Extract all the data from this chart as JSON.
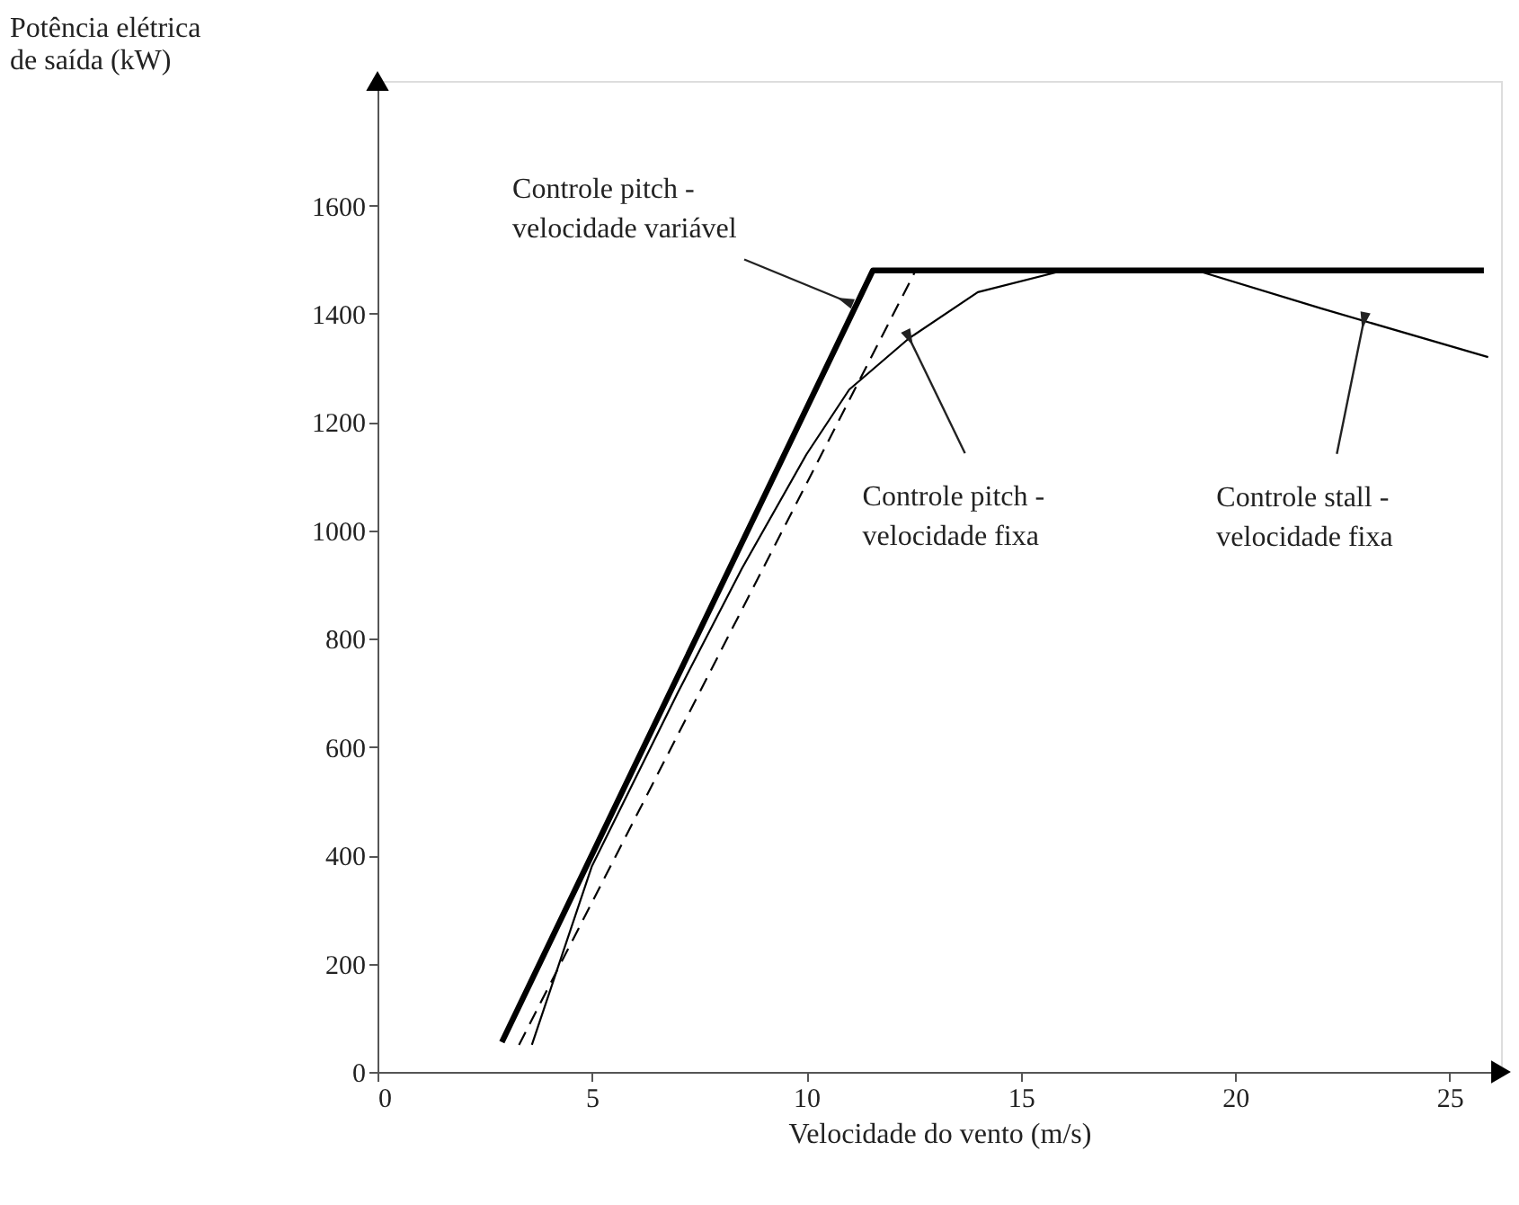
{
  "chart_data": {
    "type": "line",
    "xlabel": "Velocidade do vento (m/s)",
    "ylabel": "Potência elétrica\nde saída (kW)",
    "xlim": [
      0,
      26.2
    ],
    "ylim": [
      0,
      1830
    ],
    "xticks": [
      0,
      5,
      10,
      15,
      20,
      25
    ],
    "yticks": [
      0,
      200,
      400,
      600,
      800,
      1000,
      1200,
      1400,
      1600
    ],
    "grid": false,
    "marker": "none",
    "series": [
      {
        "color": "#000000",
        "line_style": "solid",
        "x": [
          2.9,
          11.55,
          25.8
        ],
        "values": [
          55,
          1480,
          1480
        ]
      },
      {
        "color": "#000000",
        "line_style": "dashed",
        "x": [
          3.3,
          12.55
        ],
        "values": [
          50,
          1480
        ]
      },
      {
        "color": "#000000",
        "line_style": "solid",
        "x": [
          3.6,
          5,
          7,
          8.5,
          10,
          11,
          12.4,
          14,
          16,
          19.1,
          22,
          25.9
        ],
        "values": [
          50,
          380,
          700,
          930,
          1140,
          1260,
          1355,
          1440,
          1480,
          1480,
          1410,
          1320
        ]
      }
    ],
    "annotations": [
      {
        "text": "Controle pitch -\nvelocidade variável",
        "x": 10.9,
        "y": 1424
      },
      {
        "text": "Controle pitch -\nvelocidade fixa",
        "x": 12.4,
        "y": 1355
      },
      {
        "text": "Controle stall -\nvelocidade fixa",
        "x": 23,
        "y": 1387
      }
    ]
  }
}
